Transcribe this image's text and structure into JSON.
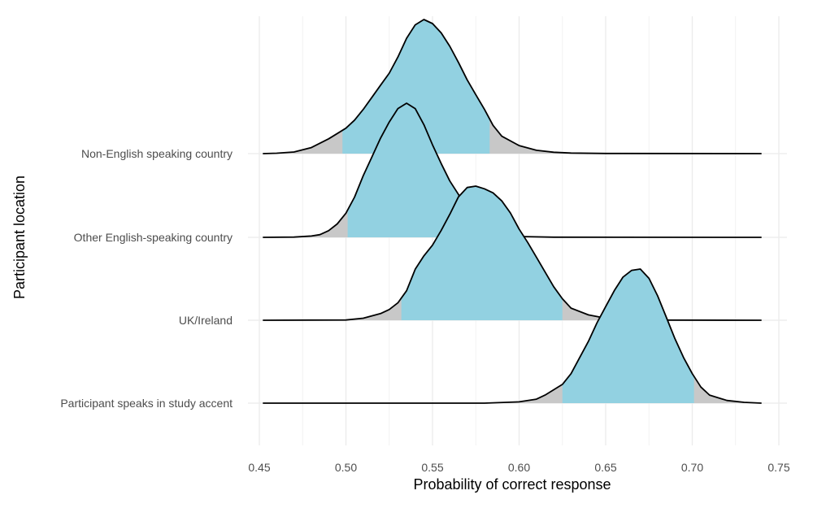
{
  "chart_data": {
    "type": "area",
    "subtype": "ridgeline-density",
    "xlabel": "Probability of correct response",
    "ylabel": "Participant location",
    "xlim": [
      0.45,
      0.75
    ],
    "x_ticks": [
      "0.45",
      "0.50",
      "0.55",
      "0.60",
      "0.65",
      "0.70",
      "0.75"
    ],
    "x_tick_values": [
      0.45,
      0.5,
      0.55,
      0.6,
      0.65,
      0.7,
      0.75
    ],
    "x_range_drawn": [
      0.452,
      0.74
    ],
    "grid": true,
    "categories": [
      "Non-English speaking country",
      "Other English-speaking country",
      "UK/Ireland",
      "Participant speaks in study accent"
    ],
    "series": [
      {
        "name": "Non-English speaking country",
        "interval": [
          0.498,
          0.583
        ],
        "density": [
          [
            0.452,
            0
          ],
          [
            0.46,
            0.003
          ],
          [
            0.47,
            0.012
          ],
          [
            0.48,
            0.045
          ],
          [
            0.49,
            0.11
          ],
          [
            0.495,
            0.15
          ],
          [
            0.5,
            0.19
          ],
          [
            0.505,
            0.25
          ],
          [
            0.51,
            0.33
          ],
          [
            0.515,
            0.42
          ],
          [
            0.52,
            0.51
          ],
          [
            0.525,
            0.6
          ],
          [
            0.53,
            0.72
          ],
          [
            0.535,
            0.86
          ],
          [
            0.54,
            0.96
          ],
          [
            0.545,
            1.0
          ],
          [
            0.55,
            0.97
          ],
          [
            0.555,
            0.9
          ],
          [
            0.56,
            0.8
          ],
          [
            0.565,
            0.68
          ],
          [
            0.57,
            0.55
          ],
          [
            0.575,
            0.44
          ],
          [
            0.58,
            0.33
          ],
          [
            0.585,
            0.21
          ],
          [
            0.59,
            0.13
          ],
          [
            0.6,
            0.06
          ],
          [
            0.61,
            0.025
          ],
          [
            0.62,
            0.01
          ],
          [
            0.63,
            0.004
          ],
          [
            0.65,
            0.001
          ],
          [
            0.74,
            0
          ]
        ]
      },
      {
        "name": "Other English-speaking country",
        "interval": [
          0.501,
          0.568
        ],
        "density": [
          [
            0.452,
            0
          ],
          [
            0.47,
            0.002
          ],
          [
            0.48,
            0.01
          ],
          [
            0.485,
            0.02
          ],
          [
            0.49,
            0.05
          ],
          [
            0.495,
            0.1
          ],
          [
            0.5,
            0.18
          ],
          [
            0.505,
            0.3
          ],
          [
            0.51,
            0.46
          ],
          [
            0.515,
            0.6
          ],
          [
            0.52,
            0.74
          ],
          [
            0.525,
            0.86
          ],
          [
            0.53,
            0.96
          ],
          [
            0.535,
            1.0
          ],
          [
            0.54,
            0.96
          ],
          [
            0.545,
            0.84
          ],
          [
            0.55,
            0.69
          ],
          [
            0.555,
            0.55
          ],
          [
            0.56,
            0.42
          ],
          [
            0.565,
            0.32
          ],
          [
            0.57,
            0.2
          ],
          [
            0.575,
            0.12
          ],
          [
            0.58,
            0.06
          ],
          [
            0.59,
            0.02
          ],
          [
            0.6,
            0.006
          ],
          [
            0.62,
            0.001
          ],
          [
            0.74,
            0
          ]
        ]
      },
      {
        "name": "UK/Ireland",
        "interval": [
          0.532,
          0.625
        ],
        "density": [
          [
            0.452,
            0
          ],
          [
            0.5,
            0.002
          ],
          [
            0.51,
            0.015
          ],
          [
            0.52,
            0.05
          ],
          [
            0.525,
            0.08
          ],
          [
            0.53,
            0.13
          ],
          [
            0.535,
            0.22
          ],
          [
            0.54,
            0.38
          ],
          [
            0.545,
            0.48
          ],
          [
            0.55,
            0.56
          ],
          [
            0.555,
            0.67
          ],
          [
            0.56,
            0.79
          ],
          [
            0.565,
            0.92
          ],
          [
            0.57,
            0.99
          ],
          [
            0.575,
            1.0
          ],
          [
            0.58,
            0.98
          ],
          [
            0.585,
            0.95
          ],
          [
            0.59,
            0.89
          ],
          [
            0.595,
            0.8
          ],
          [
            0.6,
            0.68
          ],
          [
            0.605,
            0.58
          ],
          [
            0.61,
            0.47
          ],
          [
            0.615,
            0.36
          ],
          [
            0.62,
            0.25
          ],
          [
            0.625,
            0.16
          ],
          [
            0.63,
            0.09
          ],
          [
            0.64,
            0.04
          ],
          [
            0.65,
            0.015
          ],
          [
            0.66,
            0.005
          ],
          [
            0.68,
            0.001
          ],
          [
            0.74,
            0
          ]
        ]
      },
      {
        "name": "Participant speaks in study accent",
        "interval": [
          0.625,
          0.701
        ],
        "density": [
          [
            0.452,
            0
          ],
          [
            0.58,
            0
          ],
          [
            0.6,
            0.01
          ],
          [
            0.61,
            0.03
          ],
          [
            0.615,
            0.06
          ],
          [
            0.62,
            0.1
          ],
          [
            0.625,
            0.14
          ],
          [
            0.63,
            0.22
          ],
          [
            0.635,
            0.34
          ],
          [
            0.64,
            0.46
          ],
          [
            0.645,
            0.6
          ],
          [
            0.65,
            0.72
          ],
          [
            0.655,
            0.84
          ],
          [
            0.66,
            0.94
          ],
          [
            0.665,
            0.99
          ],
          [
            0.67,
            1.0
          ],
          [
            0.675,
            0.93
          ],
          [
            0.68,
            0.8
          ],
          [
            0.685,
            0.64
          ],
          [
            0.69,
            0.48
          ],
          [
            0.695,
            0.34
          ],
          [
            0.7,
            0.22
          ],
          [
            0.705,
            0.12
          ],
          [
            0.71,
            0.06
          ],
          [
            0.72,
            0.02
          ],
          [
            0.73,
            0.006
          ],
          [
            0.74,
            0
          ]
        ]
      }
    ],
    "colors": {
      "interval_fill": "#92d1e1",
      "tail_fill": "#c8c8c8",
      "outline": "#000000",
      "grid": "#ebebeb"
    }
  }
}
